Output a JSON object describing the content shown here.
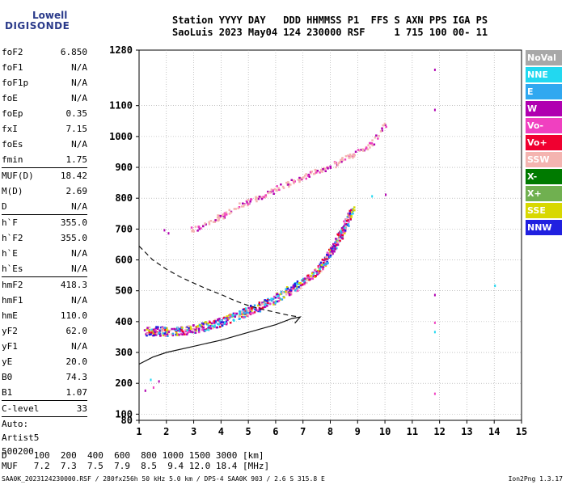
{
  "logo": {
    "line1": "Lowell",
    "line2": "DIGISONDE"
  },
  "header": {
    "line1": "Station YYYY DAY   DDD HHMMSS P1  FFS S AXN PPS IGA PS",
    "line2": "SaoLuis 2023 May04 124 230000 RSF     1 715 100 00- 11"
  },
  "params_a": [
    {
      "k": "foF2",
      "v": "6.850"
    },
    {
      "k": "foF1",
      "v": "N/A"
    },
    {
      "k": "foF1p",
      "v": "N/A"
    },
    {
      "k": "foE",
      "v": "N/A"
    },
    {
      "k": "foEp",
      "v": "0.35"
    },
    {
      "k": "fxI",
      "v": "7.15"
    },
    {
      "k": "foEs",
      "v": "N/A"
    },
    {
      "k": "fmin",
      "v": "1.75"
    }
  ],
  "params_b": [
    {
      "k": "MUF(D)",
      "v": "18.42"
    },
    {
      "k": "M(D)",
      "v": "2.69"
    },
    {
      "k": "D",
      "v": "N/A"
    }
  ],
  "params_c": [
    {
      "k": "h`F",
      "v": "355.0"
    },
    {
      "k": "h`F2",
      "v": "355.0"
    },
    {
      "k": "h`E",
      "v": "N/A"
    },
    {
      "k": "h`Es",
      "v": "N/A"
    }
  ],
  "params_d": [
    {
      "k": "hmF2",
      "v": "418.3"
    },
    {
      "k": "hmF1",
      "v": "N/A"
    },
    {
      "k": "hmE",
      "v": "110.0"
    },
    {
      "k": "yF2",
      "v": "62.0"
    },
    {
      "k": "yF1",
      "v": "N/A"
    },
    {
      "k": "yE",
      "v": "20.0"
    },
    {
      "k": "B0",
      "v": "74.3"
    },
    {
      "k": "B1",
      "v": "1.07"
    }
  ],
  "clevel": {
    "k": "C-level",
    "v": "33"
  },
  "auto": [
    "Auto:",
    "Artist5",
    "500200"
  ],
  "legend": [
    {
      "label": "NoVal",
      "color": "#a8a8a8"
    },
    {
      "label": "NNE",
      "color": "#22d8f0"
    },
    {
      "label": "E",
      "color": "#30a8f0"
    },
    {
      "label": "W",
      "color": "#b000b0"
    },
    {
      "label": "Vo-",
      "color": "#f040c0"
    },
    {
      "label": "Vo+",
      "color": "#f00030"
    },
    {
      "label": "SSW",
      "color": "#f4b4b0"
    },
    {
      "label": "X-",
      "color": "#007a00"
    },
    {
      "label": "X+",
      "color": "#70b050"
    },
    {
      "label": "SSE",
      "color": "#d8d800"
    },
    {
      "label": "NNW",
      "color": "#2020e0"
    }
  ],
  "muf_table": {
    "line1": "D     100  200  400  600  800 1000 1500 3000 [km]",
    "line2": "MUF   7.2  7.3  7.5  7.9  8.5  9.4 12.0 18.4 [MHz]"
  },
  "footer_left": "SAA0K_2023124230000.RSF / 280fx256h 50 kHz 5.0 km / DPS-4 SAA0K 903 / 2.6 S 315.8 E",
  "footer_right": "Ion2Png 1.3.17",
  "chart_data": {
    "type": "scatter",
    "title": "",
    "xlabel": "",
    "ylabel": "",
    "xlim": [
      1,
      15
    ],
    "ylim": [
      80,
      1280
    ],
    "x_ticks": [
      1,
      2,
      3,
      4,
      5,
      6,
      7,
      8,
      9,
      10,
      11,
      12,
      13,
      14,
      15
    ],
    "y_ticks": [
      80,
      100,
      200,
      300,
      400,
      500,
      600,
      700,
      800,
      900,
      1000,
      1100,
      1280
    ],
    "grid": true,
    "series": [
      {
        "name": "o-trace",
        "color_key": "W",
        "points": [
          [
            1.2,
            372
          ],
          [
            1.6,
            372
          ],
          [
            2.0,
            370
          ],
          [
            2.5,
            372
          ],
          [
            3.0,
            378
          ],
          [
            3.5,
            390
          ],
          [
            4.0,
            402
          ],
          [
            4.5,
            420
          ],
          [
            5.0,
            438
          ],
          [
            5.5,
            455
          ],
          [
            6.0,
            478
          ],
          [
            6.5,
            505
          ],
          [
            7.0,
            530
          ],
          [
            7.5,
            565
          ],
          [
            7.8,
            600
          ],
          [
            8.0,
            632
          ],
          [
            8.2,
            660
          ],
          [
            8.4,
            690
          ],
          [
            8.6,
            730
          ],
          [
            8.8,
            770
          ]
        ]
      },
      {
        "name": "second-hop",
        "color_key": "SSW",
        "points": [
          [
            2.9,
            700
          ],
          [
            3.5,
            722
          ],
          [
            4.0,
            745
          ],
          [
            4.5,
            772
          ],
          [
            5.0,
            792
          ],
          [
            5.5,
            808
          ],
          [
            6.0,
            832
          ],
          [
            6.5,
            852
          ],
          [
            7.0,
            872
          ],
          [
            7.5,
            890
          ],
          [
            8.0,
            905
          ],
          [
            8.5,
            930
          ],
          [
            9.0,
            950
          ],
          [
            9.5,
            980
          ],
          [
            10.0,
            1040
          ]
        ]
      },
      {
        "name": "profile",
        "color_key": "line",
        "points": [
          [
            1.0,
            262
          ],
          [
            1.5,
            285
          ],
          [
            2.0,
            300
          ],
          [
            3.0,
            320
          ],
          [
            4.0,
            340
          ],
          [
            5.0,
            365
          ],
          [
            6.0,
            390
          ],
          [
            6.6,
            410
          ],
          [
            6.9,
            415
          ],
          [
            6.7,
            395
          ]
        ]
      },
      {
        "name": "profile-dashed",
        "color_key": "dashed",
        "points": [
          [
            1.0,
            645
          ],
          [
            1.5,
            600
          ],
          [
            2.0,
            570
          ],
          [
            2.5,
            545
          ],
          [
            3.0,
            525
          ],
          [
            3.5,
            505
          ],
          [
            4.0,
            488
          ],
          [
            4.5,
            468
          ],
          [
            5.0,
            452
          ],
          [
            5.5,
            440
          ],
          [
            6.0,
            430
          ],
          [
            6.5,
            420
          ],
          [
            6.8,
            416
          ]
        ]
      }
    ],
    "isolated": [
      {
        "x": 1.9,
        "y": 700
      },
      {
        "x": 2.05,
        "y": 690
      },
      {
        "x": 1.4,
        "y": 215
      },
      {
        "x": 1.5,
        "y": 190
      },
      {
        "x": 1.7,
        "y": 210
      },
      {
        "x": 11.8,
        "y": 1220
      },
      {
        "x": 11.8,
        "y": 1090
      },
      {
        "x": 11.8,
        "y": 490
      },
      {
        "x": 11.8,
        "y": 400
      },
      {
        "x": 11.8,
        "y": 370
      },
      {
        "x": 11.8,
        "y": 170
      },
      {
        "x": 14.0,
        "y": 520
      },
      {
        "x": 9.5,
        "y": 810
      },
      {
        "x": 10.0,
        "y": 815
      },
      {
        "x": 1.2,
        "y": 180
      }
    ]
  }
}
